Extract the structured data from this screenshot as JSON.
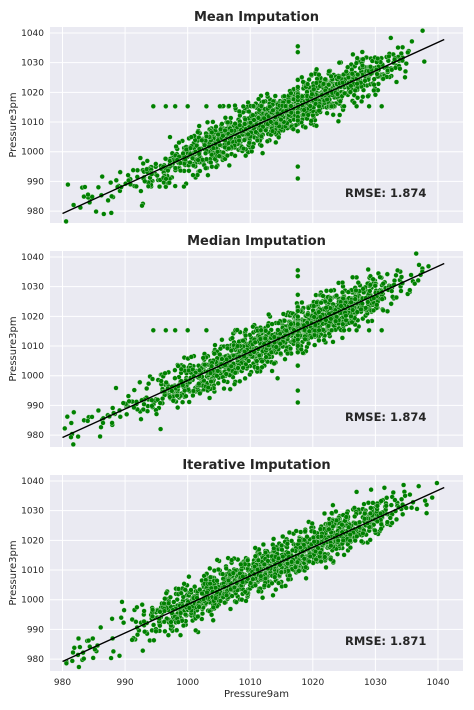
{
  "figure": {
    "x_axis_label": "Pressure9am",
    "x_ticks": [
      980,
      990,
      1000,
      1010,
      1020,
      1030,
      1040
    ],
    "y_ticks": [
      980,
      990,
      1000,
      1010,
      1020,
      1030,
      1040
    ],
    "colors": {
      "panel_bg": "#eaeaf2",
      "grid": "#ffffff",
      "points": "#008000",
      "point_edge": "#e8f3e8",
      "fit_line": "#000000"
    }
  },
  "chart_data": [
    {
      "type": "scatter",
      "title": "Mean Imputation",
      "xlabel": "",
      "ylabel": "Pressure3pm",
      "xlim": [
        978,
        1044
      ],
      "ylim": [
        976,
        1042
      ],
      "grid": true,
      "annotation": "RMSE: 1.874",
      "fit_line": {
        "x": [
          980,
          1041
        ],
        "y": [
          979.2,
          1037.8
        ]
      },
      "trend": {
        "slope": 0.96,
        "intercept": 38.4,
        "x_range": [
          980,
          1041
        ],
        "spread": 3.6
      },
      "imputed_value": {
        "x": 1017.6,
        "y": 1015.3
      },
      "extra_points": [
        [
          994.5,
          1015.3
        ],
        [
          996.5,
          1015.3
        ],
        [
          998,
          1015.3
        ],
        [
          1000,
          1015.3
        ],
        [
          1003,
          1015.3
        ],
        [
          1021,
          1015.3
        ],
        [
          1023,
          1015.3
        ],
        [
          1025,
          1015.3
        ],
        [
          1027,
          1015.3
        ],
        [
          1029,
          1015.3
        ],
        [
          1031,
          1015.3
        ],
        [
          1017.6,
          1035.5
        ],
        [
          1017.6,
          1033.5
        ],
        [
          1017.6,
          995
        ],
        [
          1017.6,
          991
        ]
      ]
    },
    {
      "type": "scatter",
      "title": "Median Imputation",
      "xlabel": "",
      "ylabel": "Pressure3pm",
      "xlim": [
        978,
        1044
      ],
      "ylim": [
        976,
        1042
      ],
      "grid": true,
      "annotation": "RMSE: 1.874",
      "fit_line": {
        "x": [
          980,
          1041
        ],
        "y": [
          979.2,
          1037.8
        ]
      },
      "trend": {
        "slope": 0.96,
        "intercept": 38.4,
        "x_range": [
          980,
          1041
        ],
        "spread": 3.6
      },
      "imputed_value": {
        "x": 1017.6,
        "y": 1015.3
      },
      "extra_points": [
        [
          994.5,
          1015.3
        ],
        [
          996.5,
          1015.3
        ],
        [
          998,
          1015.3
        ],
        [
          1000,
          1015.3
        ],
        [
          1003,
          1015.3
        ],
        [
          1021,
          1015.3
        ],
        [
          1023,
          1015.3
        ],
        [
          1025,
          1015.3
        ],
        [
          1027,
          1015.3
        ],
        [
          1029,
          1015.3
        ],
        [
          1031,
          1015.3
        ],
        [
          1017.6,
          1035.5
        ],
        [
          1017.6,
          1033.5
        ],
        [
          1017.6,
          995
        ],
        [
          1017.6,
          991
        ]
      ]
    },
    {
      "type": "scatter",
      "title": "Iterative Imputation",
      "xlabel": "Pressure9am",
      "ylabel": "Pressure3pm",
      "xlim": [
        978,
        1044
      ],
      "ylim": [
        976,
        1042
      ],
      "grid": true,
      "annotation": "RMSE: 1.871",
      "fit_line": {
        "x": [
          980,
          1041
        ],
        "y": [
          979.2,
          1037.8
        ]
      },
      "trend": {
        "slope": 0.96,
        "intercept": 38.4,
        "x_range": [
          980,
          1041
        ],
        "spread": 3.6
      },
      "imputed_value": null,
      "extra_points": []
    }
  ]
}
